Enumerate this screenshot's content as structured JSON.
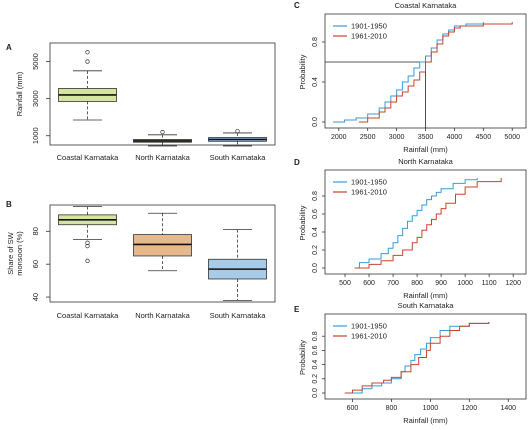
{
  "chart_data": [
    {
      "panel": "A",
      "type": "box",
      "title": "",
      "ylabel": "Rainfall (mm)",
      "categories": [
        "Coastal Karnataka",
        "North Karnataka",
        "South Karnataka"
      ],
      "yticks": [
        1000,
        3000,
        5000
      ],
      "ylim": [
        500,
        6000
      ],
      "colors": [
        "#d4e5a1",
        "#e5b98d",
        "#a8cbea"
      ],
      "boxes": [
        {
          "min": 1850,
          "q1": 2850,
          "median": 3200,
          "q3": 3550,
          "max": 4500,
          "outliers": [
            5000,
            5500
          ]
        },
        {
          "min": 450,
          "q1": 650,
          "median": 720,
          "q3": 800,
          "max": 1050,
          "outliers": [
            1200
          ]
        },
        {
          "min": 450,
          "q1": 700,
          "median": 800,
          "q3": 900,
          "max": 1150,
          "outliers": [
            1250
          ]
        }
      ]
    },
    {
      "panel": "B",
      "type": "box",
      "title": "",
      "ylabel": "Share of SW monsoon (%)",
      "categories": [
        "Coastal Karnataka",
        "North Karnataka",
        "South Karnataka"
      ],
      "yticks": [
        40,
        60,
        80
      ],
      "ylim": [
        37,
        96
      ],
      "colors": [
        "#d4e5a1",
        "#e5b98d",
        "#a8cbea"
      ],
      "boxes": [
        {
          "min": 75,
          "q1": 84,
          "median": 87,
          "q3": 90,
          "max": 95,
          "outliers": [
            73,
            71,
            62
          ]
        },
        {
          "min": 56,
          "q1": 65,
          "median": 72,
          "q3": 78,
          "max": 91,
          "outliers": []
        },
        {
          "min": 38,
          "q1": 51,
          "median": 57,
          "q3": 63,
          "max": 81,
          "outliers": []
        }
      ]
    },
    {
      "panel": "C",
      "type": "line",
      "title": "Coastal Karnataka",
      "xlabel": "Rainfall (mm)",
      "ylabel": "Probability",
      "xticks": [
        2000,
        2500,
        3000,
        3500,
        4000,
        4500,
        5000
      ],
      "yticks": [
        0.0,
        0.4,
        0.8
      ],
      "xlim": [
        1900,
        5100
      ],
      "ylim": [
        0,
        1
      ],
      "refline": {
        "x": 3500,
        "y": 0.6
      },
      "series": [
        {
          "name": "1901-1950",
          "color": "#3a9ad9",
          "x": [
            1900,
            2100,
            2300,
            2500,
            2700,
            2800,
            2900,
            3000,
            3100,
            3200,
            3300,
            3400,
            3500,
            3600,
            3700,
            3800,
            3900,
            4000,
            4200,
            4500
          ],
          "y": [
            0.0,
            0.02,
            0.04,
            0.08,
            0.14,
            0.2,
            0.26,
            0.32,
            0.4,
            0.46,
            0.54,
            0.6,
            0.66,
            0.74,
            0.82,
            0.88,
            0.92,
            0.96,
            0.98,
            1.0
          ]
        },
        {
          "name": "1961-2010",
          "color": "#c8442a",
          "x": [
            2350,
            2500,
            2700,
            2800,
            2900,
            3000,
            3100,
            3200,
            3300,
            3400,
            3500,
            3600,
            3700,
            3800,
            3900,
            4000,
            4100,
            4500,
            5000
          ],
          "y": [
            0.0,
            0.04,
            0.1,
            0.14,
            0.2,
            0.26,
            0.3,
            0.36,
            0.42,
            0.5,
            0.6,
            0.7,
            0.78,
            0.86,
            0.9,
            0.94,
            0.96,
            0.98,
            1.0
          ]
        }
      ]
    },
    {
      "panel": "D",
      "type": "line",
      "title": "North Karnataka",
      "xlabel": "Rainfall (mm)",
      "ylabel": "Probability",
      "xticks": [
        500,
        600,
        700,
        800,
        900,
        1000,
        1100,
        1200
      ],
      "yticks": [
        0.0,
        0.2,
        0.4,
        0.6,
        0.8
      ],
      "xlim": [
        450,
        1220
      ],
      "ylim": [
        0,
        1
      ],
      "series": [
        {
          "name": "1901-1950",
          "color": "#3a9ad9",
          "x": [
            540,
            560,
            600,
            650,
            680,
            700,
            720,
            740,
            760,
            780,
            800,
            820,
            840,
            860,
            880,
            900,
            950,
            1000,
            1050
          ],
          "y": [
            0.0,
            0.06,
            0.1,
            0.16,
            0.22,
            0.28,
            0.36,
            0.44,
            0.52,
            0.58,
            0.64,
            0.7,
            0.76,
            0.8,
            0.84,
            0.88,
            0.94,
            0.98,
            1.0
          ]
        },
        {
          "name": "1961-2010",
          "color": "#c8442a",
          "x": [
            540,
            600,
            650,
            700,
            740,
            780,
            800,
            820,
            840,
            860,
            880,
            900,
            920,
            960,
            1000,
            1050,
            1150
          ],
          "y": [
            0.0,
            0.04,
            0.08,
            0.14,
            0.2,
            0.28,
            0.34,
            0.42,
            0.48,
            0.54,
            0.6,
            0.66,
            0.72,
            0.82,
            0.9,
            0.96,
            1.0
          ]
        }
      ]
    },
    {
      "panel": "E",
      "type": "line",
      "title": "South Karnataka",
      "xlabel": "Rainfall (mm)",
      "ylabel": "Probability",
      "xticks": [
        600,
        800,
        1000,
        1200,
        1400
      ],
      "yticks": [
        0.0,
        0.2,
        0.4,
        0.6,
        0.8
      ],
      "xlim": [
        500,
        1450
      ],
      "ylim": [
        0,
        1
      ],
      "series": [
        {
          "name": "1901-1950",
          "color": "#3a9ad9",
          "x": [
            580,
            650,
            700,
            750,
            800,
            850,
            870,
            900,
            920,
            950,
            980,
            1000,
            1050,
            1100,
            1200,
            1300
          ],
          "y": [
            0.0,
            0.06,
            0.1,
            0.14,
            0.2,
            0.3,
            0.38,
            0.46,
            0.54,
            0.62,
            0.7,
            0.78,
            0.88,
            0.94,
            0.98,
            1.0
          ]
        },
        {
          "name": "1961-2010",
          "color": "#c8442a",
          "x": [
            560,
            600,
            650,
            700,
            760,
            800,
            850,
            900,
            940,
            980,
            1000,
            1050,
            1100,
            1150,
            1200,
            1300
          ],
          "y": [
            0.0,
            0.04,
            0.1,
            0.14,
            0.18,
            0.22,
            0.3,
            0.4,
            0.5,
            0.6,
            0.7,
            0.8,
            0.88,
            0.94,
            0.98,
            1.0
          ]
        }
      ]
    }
  ]
}
